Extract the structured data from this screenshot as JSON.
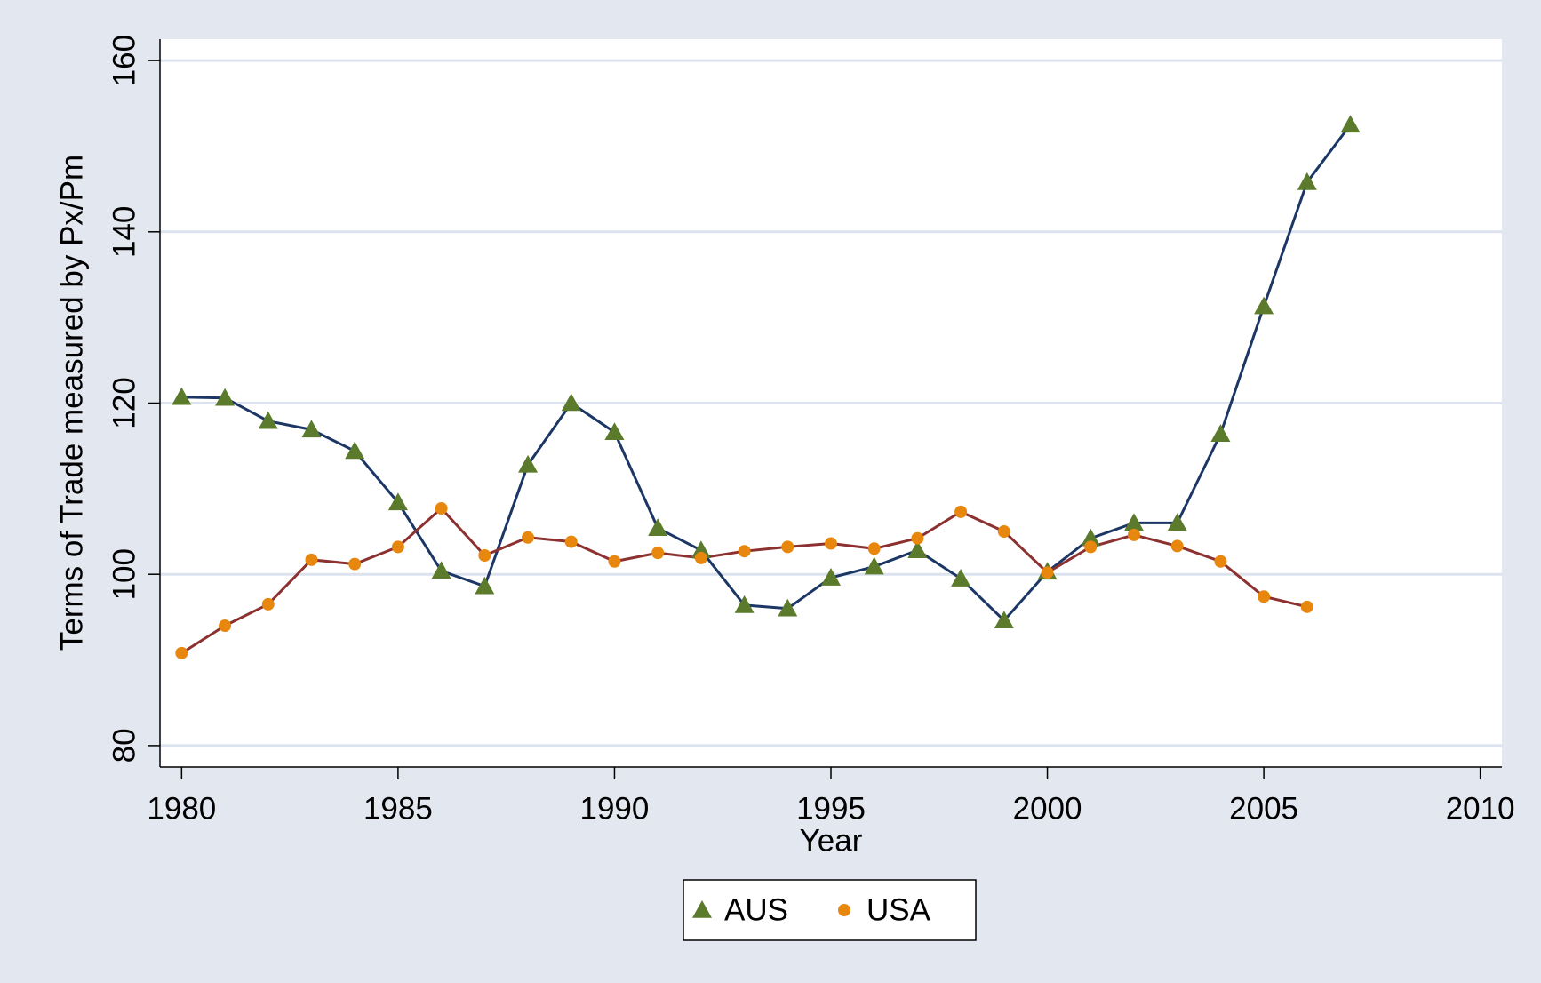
{
  "chart_data": {
    "type": "line",
    "x_label": "Year",
    "y_label": "Terms of Trade measured by Px/Pm",
    "x": [
      1980,
      1981,
      1982,
      1983,
      1984,
      1985,
      1986,
      1987,
      1988,
      1989,
      1990,
      1991,
      1992,
      1993,
      1994,
      1995,
      1996,
      1997,
      1998,
      1999,
      2000,
      2001,
      2002,
      2003,
      2004,
      2005,
      2006,
      2007
    ],
    "series": [
      {
        "name": "AUS",
        "color": "#5b7a2b",
        "line_color": "#1c3766",
        "marker": "triangle",
        "values": [
          120.7,
          120.6,
          117.9,
          116.9,
          114.4,
          108.4,
          100.4,
          98.6,
          112.8,
          120.0,
          116.6,
          105.4,
          102.8,
          96.4,
          96.0,
          99.6,
          100.9,
          102.8,
          99.5,
          94.6,
          100.3,
          104.2,
          106.0,
          106.0,
          116.4,
          131.3,
          145.8,
          152.5
        ]
      },
      {
        "name": "USA",
        "color": "#e8870e",
        "line_color": "#8c3030",
        "marker": "circle",
        "values": [
          90.8,
          94.0,
          96.5,
          101.7,
          101.2,
          103.2,
          107.7,
          102.2,
          104.3,
          103.8,
          101.5,
          102.5,
          101.9,
          102.7,
          103.2,
          103.6,
          103.0,
          104.2,
          107.3,
          105.0,
          100.2,
          103.2,
          104.6,
          103.3,
          101.5,
          97.4,
          96.2,
          null
        ]
      }
    ],
    "xlim": [
      1979.5,
      2010.5
    ],
    "xticks": [
      1980,
      1985,
      1990,
      1995,
      2000,
      2005,
      2010
    ],
    "ylim": [
      77.5,
      162.5
    ],
    "yticks": [
      80,
      100,
      120,
      140,
      160
    ],
    "grid": true,
    "legend": "bottom"
  }
}
